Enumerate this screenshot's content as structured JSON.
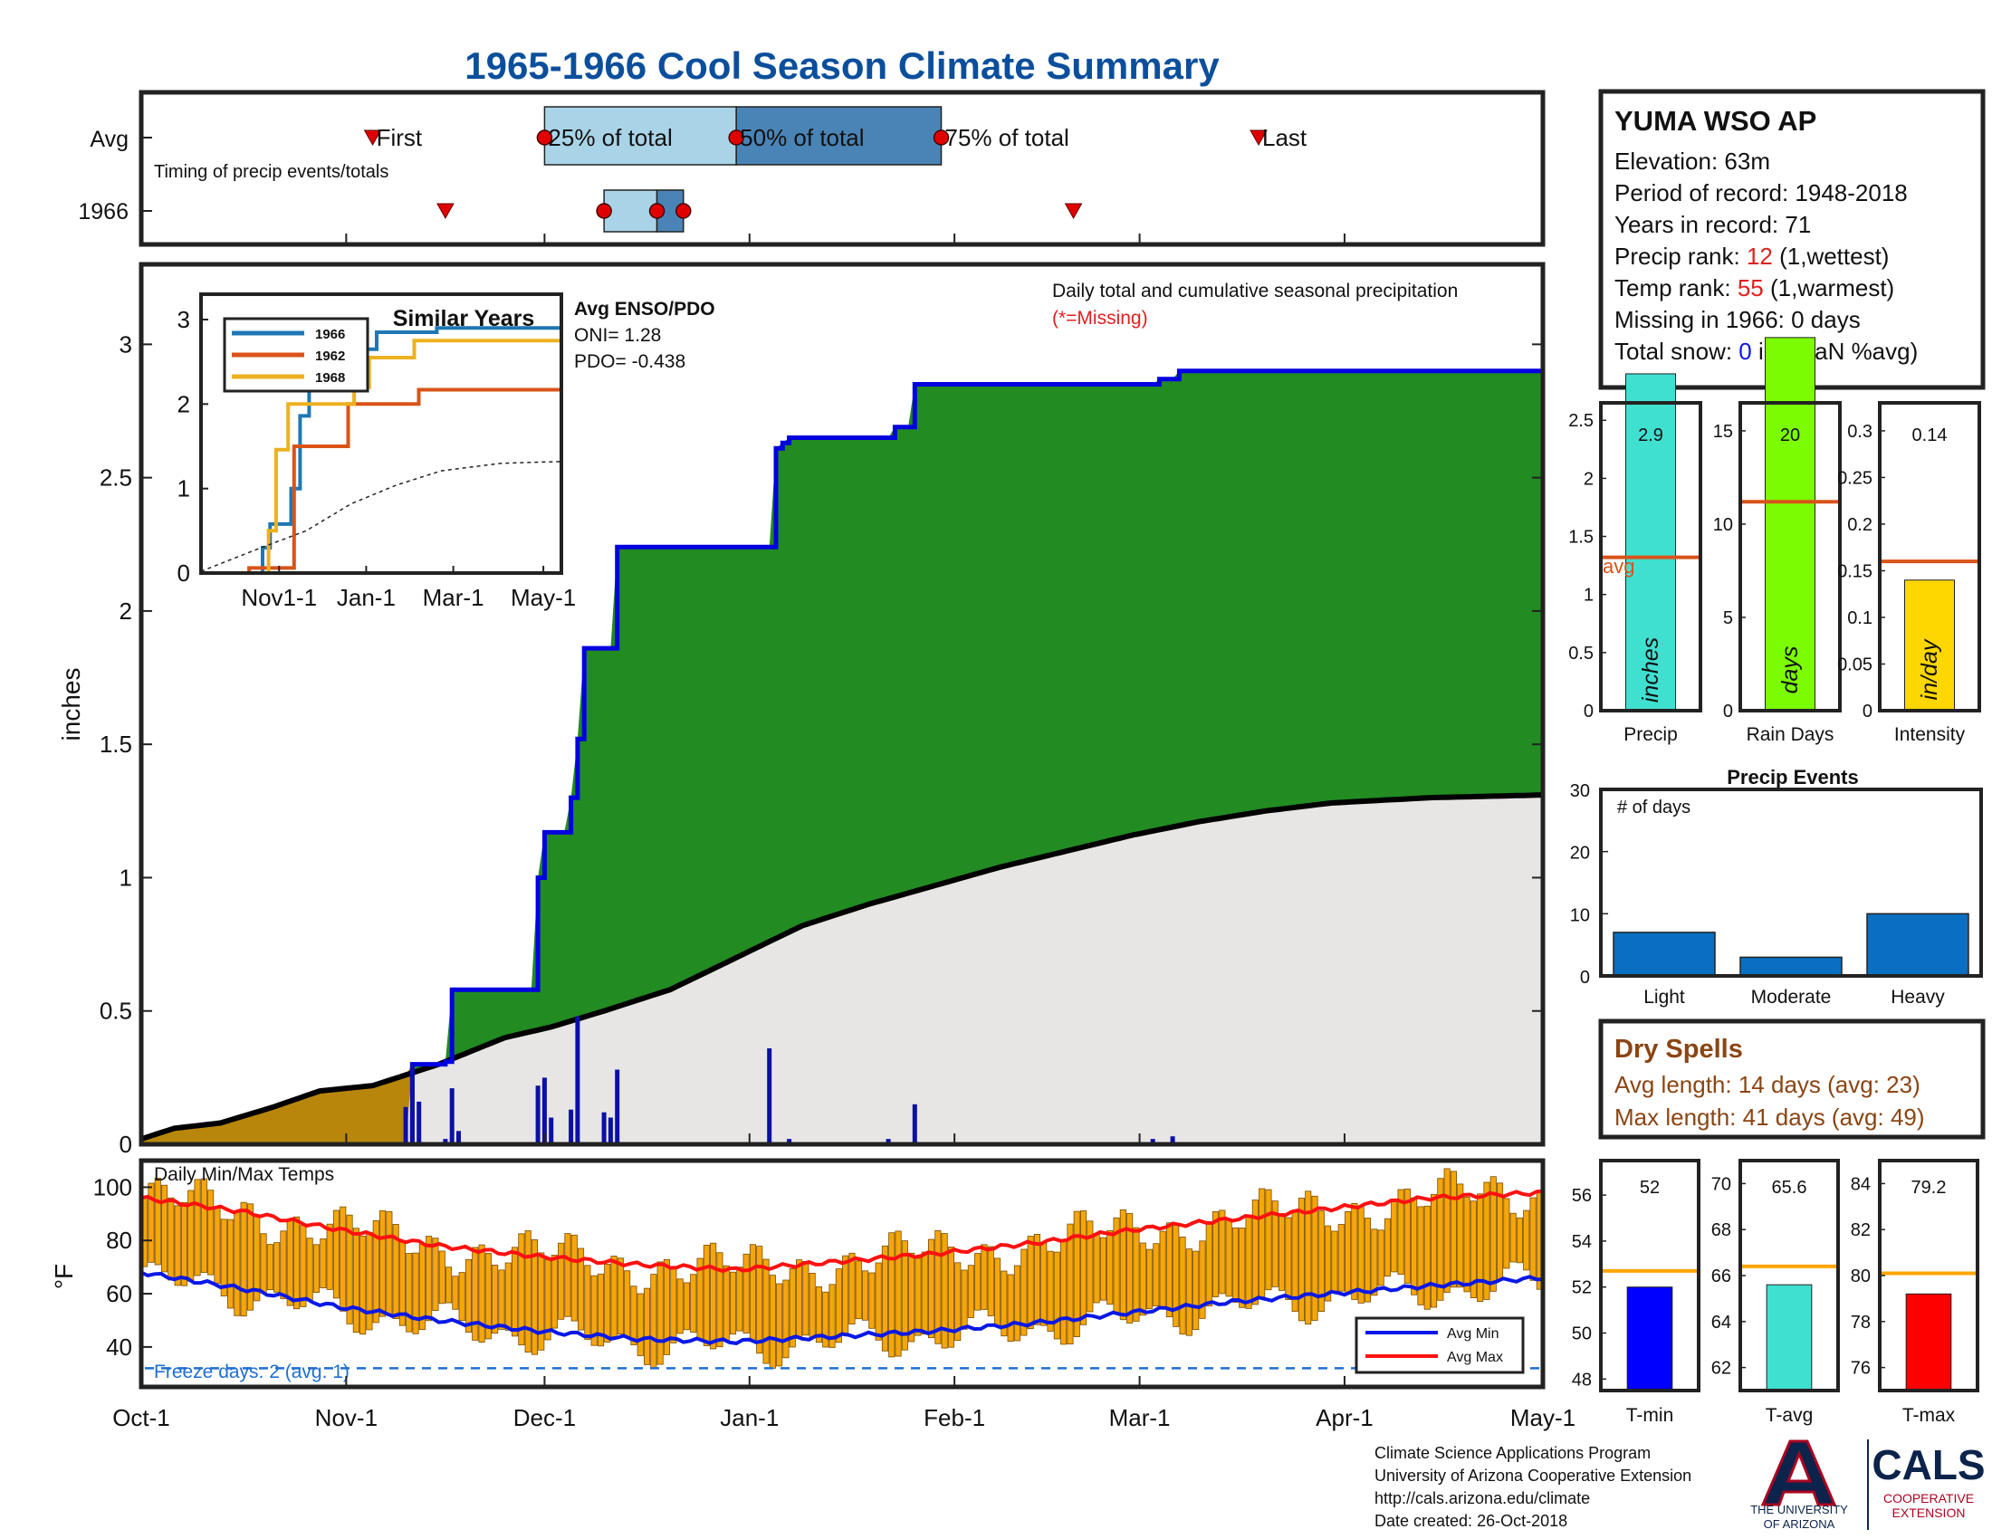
{
  "title": "1965-1966 Cool Season Climate Summary",
  "timing": {
    "rows": [
      "Avg",
      "1966"
    ],
    "caption": "Timing of precip events/totals",
    "avg_labels": [
      "First",
      "25% of total",
      "50% of total",
      "75% of total",
      "Last"
    ],
    "avg_days": {
      "first": 35,
      "p25": 61,
      "p50": 90,
      "p75": 121,
      "last": 169
    },
    "y1966_days": {
      "first": 46,
      "p25": 70,
      "p50": 78,
      "p75": 82,
      "last": 141
    }
  },
  "station": {
    "name": "YUMA WSO AP",
    "elevation": "Elevation: 63m",
    "period": "Period of record: 1948-2018",
    "years": "Years in record: 71",
    "precip_rank_prefix": "Precip rank: ",
    "precip_rank": "12",
    "precip_rank_suffix": " (1,wettest)",
    "temp_rank_prefix": "Temp rank: ",
    "temp_rank": "55",
    "temp_rank_suffix": " (1,warmest)",
    "missing": "Missing in 1966: 0 days",
    "snow_prefix": "Total snow: ",
    "snow_value": "0",
    "snow_suffix": " in. (NaN %avg)"
  },
  "main_chart": {
    "ylabel": "inches",
    "ylim": [
      0,
      3.3
    ],
    "yticks": [
      "0",
      "0.5",
      "1",
      "1.5",
      "2",
      "2.5",
      "3"
    ],
    "xticks": [
      "Oct-1",
      "Nov-1",
      "Dec-1",
      "Jan-1",
      "Feb-1",
      "Mar-1",
      "Apr-1",
      "May-1"
    ],
    "legend_title": "Daily total and cumulative seasonal precipitation",
    "legend_missing": "(*=Missing)",
    "enso_title": "Avg ENSO/PDO",
    "oni": "ONI= 1.28",
    "pdo": "PDO= -0.438"
  },
  "inset": {
    "title": "Similar Years",
    "yticks": [
      "0",
      "1",
      "2",
      "3"
    ],
    "xticks": [
      "Nov1-1",
      "Jan-1",
      "Mar-1",
      "May-1"
    ],
    "series": [
      {
        "name": "1966",
        "color": "#1f77b4"
      },
      {
        "name": "1962",
        "color": "#d95319"
      },
      {
        "name": "1968",
        "color": "#edb120"
      }
    ]
  },
  "precip_bars": {
    "labels": [
      "Precip",
      "Rain Days",
      "Intensity"
    ],
    "units": [
      "inches",
      "days",
      "in/day"
    ],
    "values": [
      "2.9",
      "20",
      "0.14"
    ],
    "avg_label": "avg",
    "p_ticks": [
      "0",
      "0.5",
      "1",
      "1.5",
      "2",
      "2.5"
    ],
    "r_ticks": [
      "0",
      "5",
      "10",
      "15"
    ],
    "i_ticks": [
      "0",
      "0.05",
      "0.1",
      "0.15",
      "0.2",
      "0.25",
      "0.3"
    ]
  },
  "events": {
    "title": "Precip Events",
    "ylabel": "# of days",
    "categories": [
      "Light",
      "Moderate",
      "Heavy"
    ],
    "values": [
      7,
      3,
      10
    ],
    "yticks": [
      "0",
      "10",
      "20",
      "30"
    ]
  },
  "dry_spells": {
    "title": "Dry Spells",
    "avg_line": "Avg length: 14 days (avg: 23)",
    "max_line": "Max length: 41 days (avg: 49)"
  },
  "temps": {
    "title": "Daily Min/Max Temps",
    "ylabel": "°F",
    "yticks": [
      "40",
      "60",
      "80",
      "100"
    ],
    "freeze_label": "Freeze days: 2 (avg. 1)",
    "legend": [
      "Avg Min",
      "Avg Max"
    ]
  },
  "temp_bars": {
    "labels": [
      "T-min",
      "T-avg",
      "T-max"
    ],
    "values": [
      "52",
      "65.6",
      "79.2"
    ],
    "tmin_ticks": [
      "48",
      "50",
      "52",
      "54",
      "56"
    ],
    "tavg_ticks": [
      "62",
      "64",
      "66",
      "68",
      "70"
    ],
    "tmax_ticks": [
      "76",
      "78",
      "80",
      "82",
      "84"
    ]
  },
  "credits": {
    "line1": "Climate Science Applications Program",
    "line2": "University of Arizona Cooperative Extension",
    "line3": "http://cals.arizona.edu/climate",
    "line4": " Date created: 26-Oct-2018",
    "ua_name1": "THE UNIVERSITY",
    "ua_name2": "OF ARIZONA",
    "cals": "CALS",
    "cals_sub1": "COOPERATIVE",
    "cals_sub2": "EXTENSION"
  },
  "chart_data": [
    {
      "type": "area",
      "title": "Daily total and cumulative seasonal precipitation",
      "ylabel": "inches",
      "xlim_days": [
        0,
        212
      ],
      "ylim": [
        0,
        3.3
      ],
      "cumulative_1966": [
        [
          0,
          0
        ],
        [
          40,
          0
        ],
        [
          41,
          0.3
        ],
        [
          46,
          0.31
        ],
        [
          47,
          0.58
        ],
        [
          59,
          0.58
        ],
        [
          60,
          1.0
        ],
        [
          61,
          1.17
        ],
        [
          65,
          1.3
        ],
        [
          66,
          1.52
        ],
        [
          67,
          1.86
        ],
        [
          71,
          1.86
        ],
        [
          72,
          2.24
        ],
        [
          95,
          2.24
        ],
        [
          96,
          2.61
        ],
        [
          97,
          2.63
        ],
        [
          98,
          2.65
        ],
        [
          113,
          2.65
        ],
        [
          114,
          2.69
        ],
        [
          116,
          2.69
        ],
        [
          117,
          2.85
        ],
        [
          153,
          2.85
        ],
        [
          154,
          2.87
        ],
        [
          156,
          2.87
        ],
        [
          157,
          2.9
        ],
        [
          212,
          2.9
        ]
      ],
      "cumulative_avg": [
        [
          0,
          0.02
        ],
        [
          5,
          0.06
        ],
        [
          12,
          0.08
        ],
        [
          20,
          0.14
        ],
        [
          27,
          0.2
        ],
        [
          35,
          0.22
        ],
        [
          45,
          0.3
        ],
        [
          55,
          0.4
        ],
        [
          62,
          0.44
        ],
        [
          70,
          0.5
        ],
        [
          80,
          0.58
        ],
        [
          90,
          0.7
        ],
        [
          100,
          0.82
        ],
        [
          110,
          0.9
        ],
        [
          120,
          0.97
        ],
        [
          130,
          1.04
        ],
        [
          140,
          1.1
        ],
        [
          150,
          1.16
        ],
        [
          160,
          1.21
        ],
        [
          170,
          1.25
        ],
        [
          180,
          1.28
        ],
        [
          195,
          1.3
        ],
        [
          212,
          1.31
        ]
      ],
      "daily_1966": [
        [
          40,
          0.14
        ],
        [
          41,
          0.3
        ],
        [
          42,
          0.16
        ],
        [
          46,
          0.02
        ],
        [
          47,
          0.21
        ],
        [
          48,
          0.05
        ],
        [
          60,
          0.22
        ],
        [
          61,
          0.25
        ],
        [
          62,
          0.1
        ],
        [
          65,
          0.13
        ],
        [
          66,
          0.48
        ],
        [
          70,
          0.12
        ],
        [
          71,
          0.1
        ],
        [
          72,
          0.28
        ],
        [
          95,
          0.36
        ],
        [
          98,
          0.02
        ],
        [
          113,
          0.02
        ],
        [
          117,
          0.15
        ],
        [
          153,
          0.02
        ],
        [
          156,
          0.03
        ]
      ]
    },
    {
      "type": "bar",
      "title": "Precip Events",
      "categories": [
        "Light",
        "Moderate",
        "Heavy"
      ],
      "values": [
        7,
        3,
        10
      ],
      "ylim": [
        0,
        30
      ]
    },
    {
      "type": "bar",
      "categories": [
        "Precip",
        "Rain Days",
        "Intensity"
      ],
      "values": [
        2.9,
        20,
        0.14
      ],
      "averages": [
        1.32,
        11.2,
        0.16
      ]
    },
    {
      "type": "bar",
      "categories": [
        "T-min",
        "T-avg",
        "T-max"
      ],
      "values": [
        52,
        65.6,
        79.2
      ],
      "averages": [
        52.7,
        66.4,
        80.1
      ]
    },
    {
      "type": "line",
      "title": "Daily Min/Max Temps",
      "ylabel": "°F",
      "ylim": [
        25,
        110
      ],
      "avg_max": [
        [
          0,
          96
        ],
        [
          15,
          91
        ],
        [
          30,
          84
        ],
        [
          45,
          78
        ],
        [
          60,
          74
        ],
        [
          75,
          71
        ],
        [
          90,
          69
        ],
        [
          105,
          72
        ],
        [
          120,
          75
        ],
        [
          135,
          79
        ],
        [
          150,
          84
        ],
        [
          165,
          88
        ],
        [
          180,
          92
        ],
        [
          195,
          96
        ],
        [
          212,
          98
        ]
      ],
      "avg_min": [
        [
          0,
          68
        ],
        [
          15,
          62
        ],
        [
          30,
          55
        ],
        [
          45,
          50
        ],
        [
          60,
          46
        ],
        [
          75,
          43
        ],
        [
          90,
          42
        ],
        [
          105,
          44
        ],
        [
          120,
          46
        ],
        [
          135,
          49
        ],
        [
          150,
          53
        ],
        [
          165,
          57
        ],
        [
          180,
          60
        ],
        [
          195,
          63
        ],
        [
          212,
          66
        ]
      ],
      "freeze_threshold": 32
    },
    {
      "type": "line",
      "title": "Similar Years",
      "x_days": [
        0,
        240
      ],
      "ylim": [
        0,
        3.3
      ],
      "series": [
        {
          "name": "1966",
          "values": [
            [
              0,
              0
            ],
            [
              40,
              0
            ],
            [
              41,
              0.3
            ],
            [
              46,
              0.58
            ],
            [
              60,
              1.0
            ],
            [
              66,
              1.86
            ],
            [
              72,
              2.24
            ],
            [
              96,
              2.61
            ],
            [
              98,
              2.65
            ],
            [
              117,
              2.85
            ],
            [
              157,
              2.9
            ],
            [
              240,
              2.9
            ]
          ]
        },
        {
          "name": "1962",
          "values": [
            [
              0,
              0
            ],
            [
              30,
              0
            ],
            [
              32,
              0.06
            ],
            [
              60,
              0.06
            ],
            [
              62,
              1.5
            ],
            [
              95,
              1.5
            ],
            [
              98,
              2.0
            ],
            [
              140,
              2.0
            ],
            [
              145,
              2.17
            ],
            [
              240,
              2.17
            ]
          ]
        },
        {
          "name": "1968",
          "values": [
            [
              0,
              0
            ],
            [
              42,
              0
            ],
            [
              45,
              0.5
            ],
            [
              50,
              1.46
            ],
            [
              55,
              1.46
            ],
            [
              58,
              2.0
            ],
            [
              100,
              2.0
            ],
            [
              102,
              2.2
            ],
            [
              110,
              2.2
            ],
            [
              112,
              2.55
            ],
            [
              140,
              2.55
            ],
            [
              142,
              2.75
            ],
            [
              240,
              2.75
            ]
          ]
        },
        {
          "name": "avg",
          "values": [
            [
              0,
              0.02
            ],
            [
              40,
              0.3
            ],
            [
              70,
              0.5
            ],
            [
              100,
              0.82
            ],
            [
              130,
              1.04
            ],
            [
              160,
              1.21
            ],
            [
              200,
              1.3
            ],
            [
              240,
              1.32
            ]
          ]
        }
      ]
    }
  ]
}
